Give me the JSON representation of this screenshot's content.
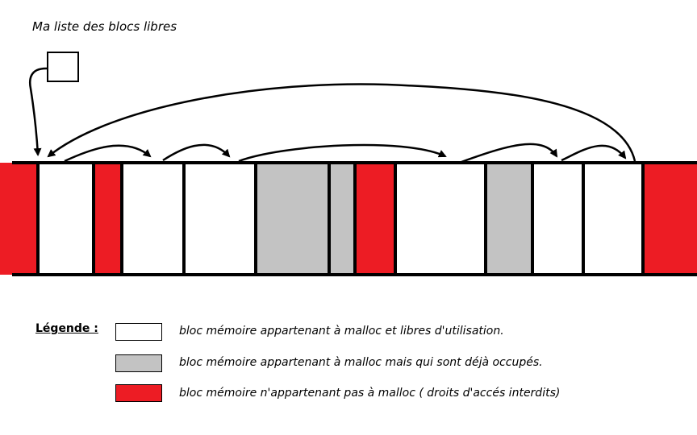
{
  "title": "Ma liste des blocs libres",
  "legend": {
    "heading": "Légende :",
    "items": [
      {
        "kind": "free",
        "color": "#ffffff",
        "label": "bloc mémoire appartenant à malloc et libres d'utilisation."
      },
      {
        "kind": "used",
        "color": "#c3c3c3",
        "label": "bloc mémoire appartenant à malloc mais qui sont déjà occupés."
      },
      {
        "kind": "foreign",
        "color": "#ed1c24",
        "label": "bloc mémoire n'appartenant pas à malloc ( droits d'accés interdits)"
      }
    ]
  },
  "colors": {
    "free": "#ffffff",
    "used": "#c3c3c3",
    "foreign": "#ed1c24",
    "line": "#000000"
  },
  "memory": {
    "blocks": [
      "foreign",
      "free",
      "foreign",
      "free",
      "free",
      "used",
      "used",
      "foreign",
      "free",
      "used",
      "free",
      "free",
      "foreign"
    ]
  },
  "free_list": {
    "links": [
      [
        0,
        1
      ],
      [
        1,
        3
      ],
      [
        3,
        4
      ],
      [
        4,
        8
      ],
      [
        8,
        10
      ],
      [
        10,
        11
      ],
      [
        11,
        1
      ]
    ]
  }
}
